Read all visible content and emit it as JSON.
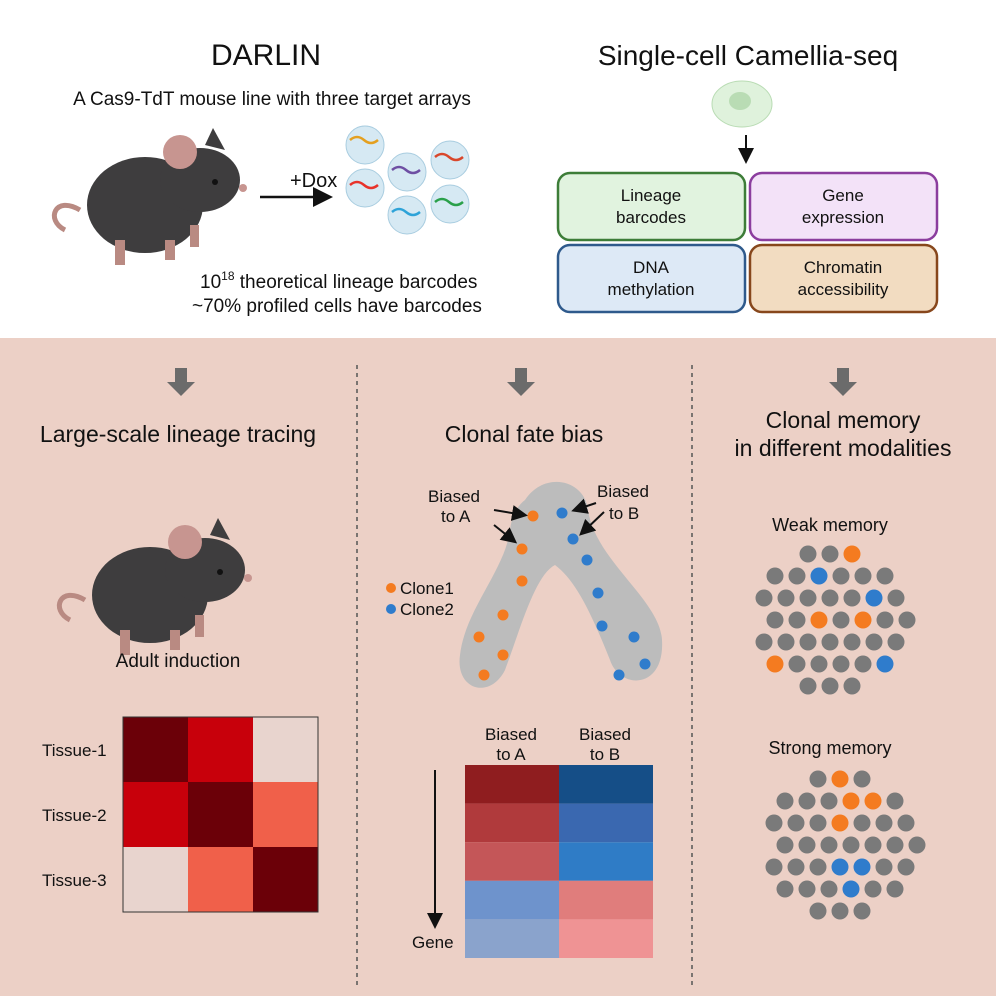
{
  "top_left": {
    "title": "DARLIN",
    "subtitle": "A Cas9-TdT mouse line with three target arrays",
    "arrow_label": "+Dox",
    "stat1_base": "10",
    "stat1_exp": "18",
    "stat1_rest": " theoretical lineage barcodes",
    "stat2": "~70% profiled cells have barcodes"
  },
  "top_right": {
    "title": "Single-cell Camellia-seq",
    "modalities": [
      {
        "line1": "Lineage",
        "line2": "barcodes",
        "fill": "#e1f3df",
        "border": "#3d7d38"
      },
      {
        "line1": "Gene",
        "line2": "expression",
        "fill": "#f3e2f8",
        "border": "#8b3d9e"
      },
      {
        "line1": "DNA",
        "line2": "methylation",
        "fill": "#dde9f6",
        "border": "#2f5a8c"
      },
      {
        "line1": "Chromatin",
        "line2": "accessibility",
        "fill": "#f2dcc1",
        "border": "#87471c"
      }
    ]
  },
  "panel1": {
    "title": "Large-scale lineage tracing",
    "caption": "Adult induction",
    "rows": [
      "Tissue-1",
      "Tissue-2",
      "Tissue-3"
    ],
    "heatmap_colors": [
      [
        "#6b0008",
        "#c8000b",
        "#e8d4ce"
      ],
      [
        "#c8000b",
        "#6b0008",
        "#f0604a"
      ],
      [
        "#e8d4ce",
        "#f0604a",
        "#6b0008"
      ]
    ]
  },
  "panel2": {
    "title": "Clonal fate bias",
    "label_a1": "Biased",
    "label_a2": "to A",
    "label_b1": "Biased",
    "label_b2": "to B",
    "legend": [
      {
        "label": "Clone1",
        "color": "#f47b20"
      },
      {
        "label": "Clone2",
        "color": "#2f7ccc"
      }
    ],
    "col_a1": "Biased",
    "col_a2": "to A",
    "col_b1": "Biased",
    "col_b2": "to B",
    "axis_label": "Gene",
    "heatmap_colors": [
      [
        "#8f1d1f",
        "#154e87"
      ],
      [
        "#b03a3c",
        "#3a68b0"
      ],
      [
        "#c45658",
        "#2f7cc6"
      ],
      [
        "#6e93cc",
        "#e07d7c"
      ],
      [
        "#8aa3cc",
        "#ef9394"
      ]
    ]
  },
  "panel3": {
    "title1": "Clonal memory",
    "title2": "in different modalities",
    "weak": "Weak memory",
    "strong": "Strong memory"
  },
  "colors": {
    "bottom_bg": "#ecd0c6",
    "orange": "#f47b20",
    "blue": "#2f7ccc",
    "gray_cell": "#7a7a7a",
    "arrow_gray": "#6b6b6b"
  }
}
